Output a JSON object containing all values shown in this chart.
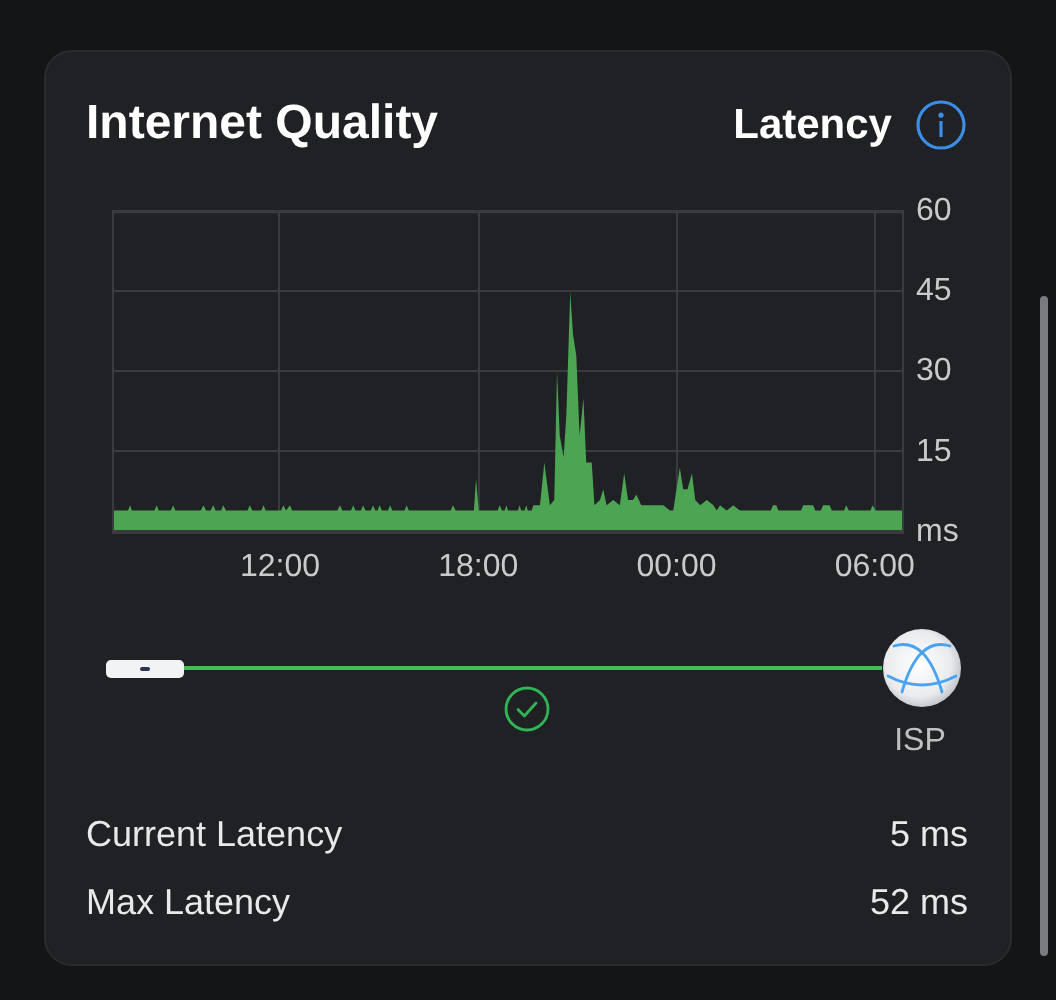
{
  "chart_data": {
    "type": "area",
    "title": "Internet Quality",
    "subtitle": "Latency",
    "annotations": [
      "ISP",
      "Current Latency",
      "5 ms",
      "Max Latency",
      "52 ms"
    ],
    "x": [
      "--01-01T06:55",
      "--01-01T07:24",
      "--01-01T07:28",
      "--01-01T07:31",
      "--01-01T08:12",
      "--01-01T08:16",
      "--01-01T08:20",
      "--01-01T08:42",
      "--01-01T08:46",
      "--01-01T08:50",
      "--01-01T09:36",
      "--01-01T09:41",
      "--01-01T09:46",
      "--01-01T09:54",
      "--01-01T09:59",
      "--01-01T10:03",
      "--01-01T10:13",
      "--01-01T10:17",
      "--01-01T10:22",
      "--01-01T11:01",
      "--01-01T11:05",
      "--01-01T11:10",
      "--01-01T11:26",
      "--01-01T11:30",
      "--01-01T11:34",
      "--01-01T12:02",
      "--01-01T12:06",
      "--01-01T12:11",
      "--01-01T12:14",
      "--01-01T12:18",
      "--01-01T12:22",
      "--01-01T13:44",
      "--01-01T13:49",
      "--01-01T13:53",
      "--01-01T14:09",
      "--01-01T14:13",
      "--01-01T14:17",
      "--01-01T14:27",
      "--01-01T14:31",
      "--01-01T14:35",
      "--01-01T14:45",
      "--01-01T14:49",
      "--01-01T14:53",
      "--01-01T14:57",
      "--01-01T15:01",
      "--01-01T15:05",
      "--01-01T15:16",
      "--01-01T15:20",
      "--01-01T15:24",
      "--01-01T15:46",
      "--01-01T15:50",
      "--01-01T15:54",
      "--01-01T17:10",
      "--01-01T17:14",
      "--01-01T17:19",
      "--01-01T17:52",
      "--01-01T17:56",
      "--01-01T18:01",
      "--01-01T18:35",
      "--01-01T18:39",
      "--01-01T18:43",
      "--01-01T18:48",
      "--01-01T18:51",
      "--01-01T18:54",
      "--01-01T19:12",
      "--01-01T19:15",
      "--01-01T19:18",
      "--01-01T19:24",
      "--01-01T19:27",
      "--01-01T19:30",
      "--01-01T19:37",
      "--01-01T19:40",
      "--01-01T19:52",
      "--01-01T20:00",
      "--01-01T20:10",
      "--01-01T20:18",
      "--01-01T20:23",
      "--01-01T20:28",
      "--01-01T20:35",
      "--01-01T20:40",
      "--01-01T20:47",
      "--01-01T20:52",
      "--01-01T20:58",
      "--01-01T21:04",
      "--01-01T21:11",
      "--01-01T21:16",
      "--01-01T21:26",
      "--01-01T21:31",
      "--01-01T21:41",
      "--01-01T21:47",
      "--01-01T21:53",
      "--01-01T22:05",
      "--01-01T22:17",
      "--01-01T22:25",
      "--01-01T22:32",
      "--01-01T22:41",
      "--01-01T22:47",
      "--01-01T22:56",
      "--01-01T23:11",
      "--01-01T23:36",
      "--01-01T23:48",
      "--01-01T23:54",
      "--01-02T00:06",
      "--01-02T00:12",
      "--01-02T00:20",
      "--01-02T00:28",
      "--01-02T00:34",
      "--01-02T00:43",
      "--01-02T00:55",
      "--01-02T01:07",
      "--01-02T01:13",
      "--01-02T01:19",
      "--01-02T01:31",
      "--01-02T01:43",
      "--01-02T01:55",
      "--01-02T02:51",
      "--01-02T02:55",
      "--01-02T03:01",
      "--01-02T03:05",
      "--01-02T03:46",
      "--01-02T03:50",
      "--01-02T04:08",
      "--01-02T04:12",
      "--01-02T04:22",
      "--01-02T04:26",
      "--01-02T04:38",
      "--01-02T04:42",
      "--01-02T05:04",
      "--01-02T05:08",
      "--01-02T05:13",
      "--01-02T05:52",
      "--01-02T05:56",
      "--01-02T06:01",
      "--01-02T06:53"
    ],
    "values": [
      4,
      4,
      5,
      4,
      4,
      5,
      4,
      4,
      5,
      4,
      4,
      5,
      4,
      4,
      5,
      4,
      4,
      5,
      4,
      4,
      5,
      4,
      4,
      5,
      4,
      4,
      5,
      4,
      4,
      5,
      4,
      4,
      5,
      4,
      4,
      5,
      4,
      4,
      5,
      4,
      4,
      5,
      4,
      4,
      5,
      4,
      4,
      5,
      4,
      4,
      5,
      4,
      4,
      5,
      4,
      4,
      10,
      4,
      4,
      5,
      4,
      4,
      5,
      4,
      4,
      5,
      4,
      4,
      5,
      4,
      4,
      5,
      5,
      13,
      5,
      6,
      30,
      18,
      14,
      22,
      45,
      37,
      33,
      18,
      25,
      13,
      13,
      5,
      6,
      8,
      5,
      6,
      5,
      11,
      6,
      6,
      7,
      5,
      5,
      5,
      4,
      4,
      12,
      8,
      8,
      11,
      6,
      5,
      6,
      5,
      4,
      5,
      4,
      5,
      4,
      4,
      5,
      5,
      4,
      4,
      5,
      5,
      4,
      4,
      5,
      5,
      4,
      4,
      5,
      4,
      4,
      5,
      4,
      4
    ],
    "color": "#4ca552",
    "xlim": [
      "--01-01T06:55",
      "--01-02T06:53"
    ],
    "xticks": [
      {
        "value": "--01-01T12:00",
        "label": "12:00"
      },
      {
        "value": "--01-01T18:00",
        "label": "18:00"
      },
      {
        "value": "--01-02T00:00",
        "label": "00:00"
      },
      {
        "value": "--01-02T06:00",
        "label": "06:00"
      }
    ],
    "ylim": [
      0,
      60
    ],
    "yticks": [
      {
        "value": 0,
        "label": "ms"
      },
      15,
      30,
      45,
      60
    ],
    "grid": true
  }
}
